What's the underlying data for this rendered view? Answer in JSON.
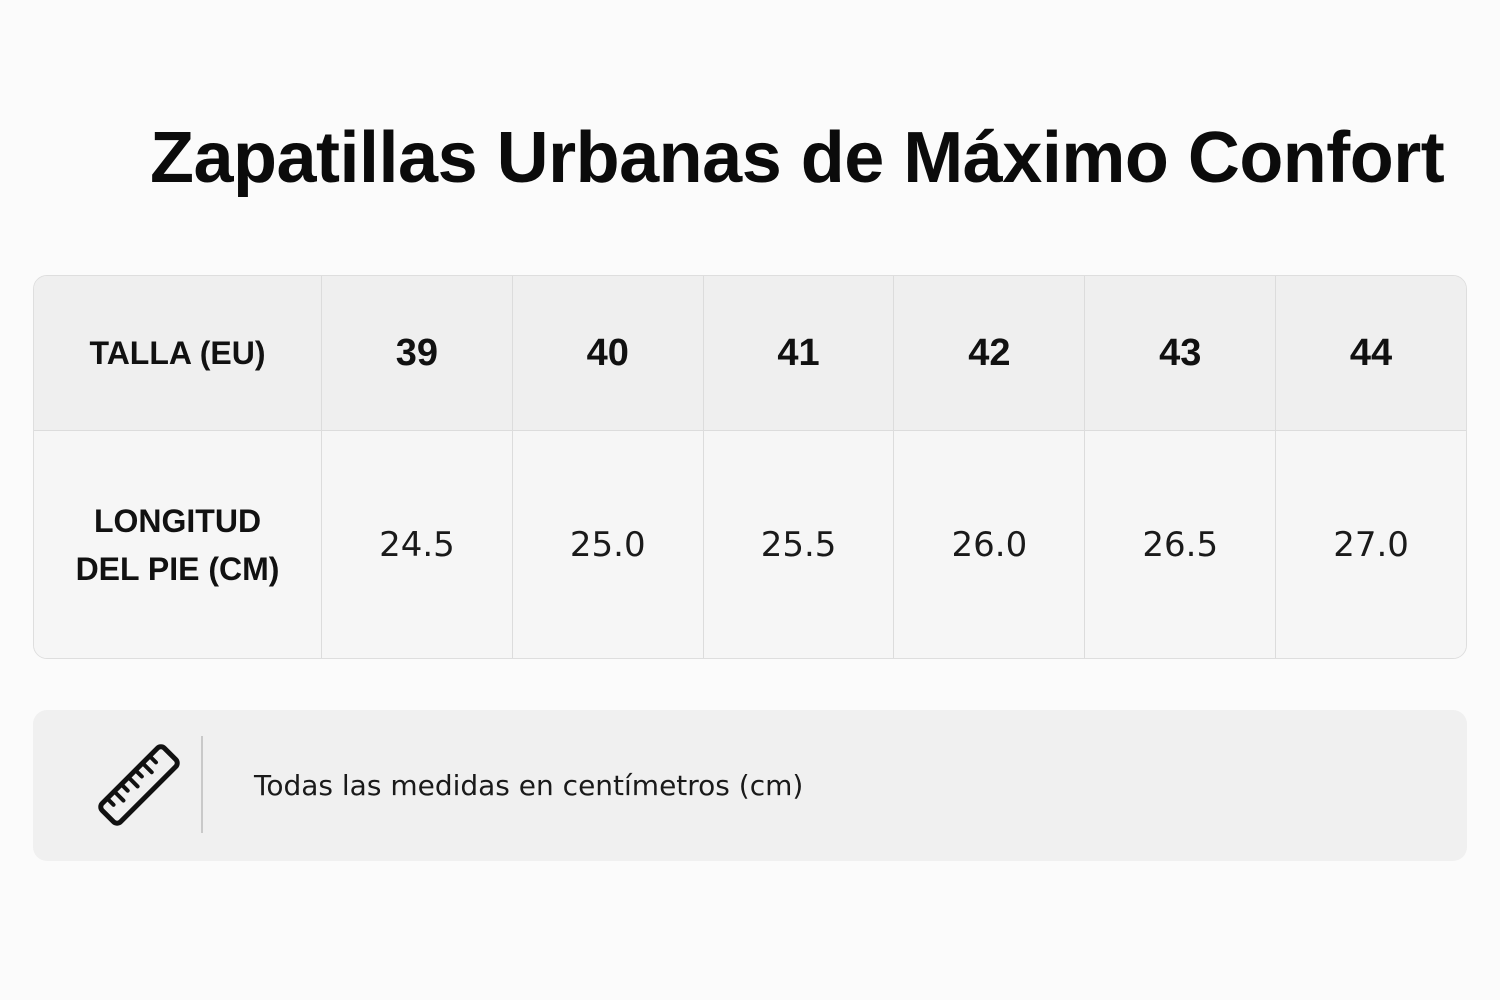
{
  "title": "Zapatillas Urbanas de Máximo Confort",
  "table": {
    "header_label": "TALLA (EU)",
    "row_label": "LONGITUD DEL PIE (CM)",
    "sizes": [
      "39",
      "40",
      "41",
      "42",
      "43",
      "44"
    ],
    "lengths": [
      "24.5",
      "25.0",
      "25.5",
      "26.0",
      "26.5",
      "27.0"
    ]
  },
  "note": {
    "icon": "ruler-icon",
    "text": "Todas las medidas en centímetros (cm)"
  }
}
